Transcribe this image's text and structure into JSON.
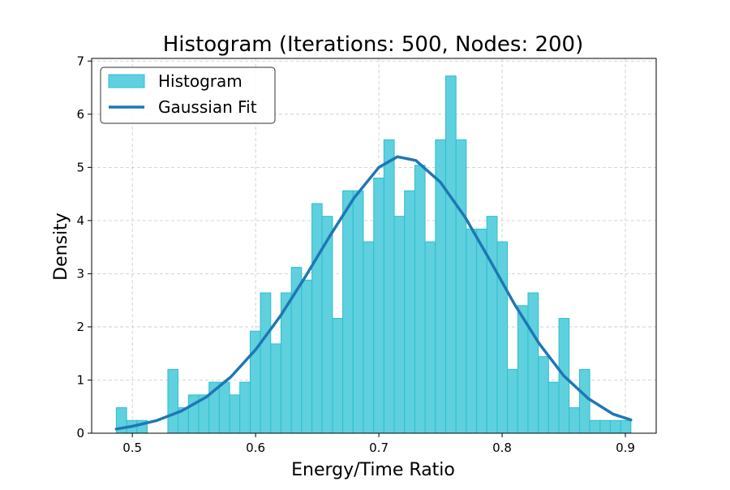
{
  "chart_data": {
    "type": "bar",
    "title": "Histogram (Iterations: 500, Nodes: 200)",
    "xlabel": "Energy/Time Ratio",
    "ylabel": "Density",
    "xlim": [
      0.467,
      0.925
    ],
    "ylim": [
      0,
      7.05
    ],
    "xticks": [
      "0.5",
      "0.6",
      "0.7",
      "0.8",
      "0.9"
    ],
    "yticks": [
      "0",
      "1",
      "2",
      "3",
      "4",
      "5",
      "6",
      "7"
    ],
    "grid": true,
    "legend_position": "top-left",
    "bin_edges": [
      0.487,
      0.4954,
      0.5037,
      0.5121,
      0.5204,
      0.5288,
      0.5371,
      0.5455,
      0.5538,
      0.5622,
      0.5705,
      0.5789,
      0.5872,
      0.5956,
      0.6039,
      0.6123,
      0.6206,
      0.629,
      0.6373,
      0.6457,
      0.654,
      0.6624,
      0.6707,
      0.6791,
      0.6874,
      0.6958,
      0.7041,
      0.7125,
      0.7208,
      0.7292,
      0.7375,
      0.7459,
      0.7542,
      0.7626,
      0.7709,
      0.7793,
      0.7876,
      0.796,
      0.8043,
      0.8127,
      0.821,
      0.8294,
      0.8377,
      0.8461,
      0.8544,
      0.8628,
      0.8711,
      0.8795,
      0.8878,
      0.8962,
      0.9045
    ],
    "series": [
      {
        "name": "Histogram",
        "kind": "histogram",
        "color": "#5ed0de",
        "edge_color": "#2fbfcf",
        "values": [
          0.48,
          0.24,
          0.24,
          0.0,
          0.0,
          1.2,
          0.48,
          0.72,
          0.72,
          0.96,
          0.96,
          0.72,
          0.96,
          1.92,
          2.64,
          1.68,
          2.64,
          3.12,
          2.88,
          4.32,
          4.08,
          2.16,
          4.56,
          4.56,
          3.6,
          4.8,
          5.52,
          4.08,
          4.56,
          5.04,
          3.6,
          5.52,
          6.72,
          5.52,
          3.84,
          3.84,
          4.08,
          3.6,
          1.2,
          2.4,
          2.64,
          1.44,
          0.96,
          2.16,
          0.48,
          1.2,
          0.24,
          0.24,
          0.24,
          0.24
        ]
      },
      {
        "name": "Gaussian Fit",
        "kind": "line",
        "color": "#1f77b4",
        "x": [
          0.487,
          0.5,
          0.52,
          0.54,
          0.56,
          0.58,
          0.6,
          0.62,
          0.64,
          0.66,
          0.68,
          0.7,
          0.715,
          0.73,
          0.75,
          0.77,
          0.79,
          0.81,
          0.83,
          0.85,
          0.87,
          0.89,
          0.9045
        ],
        "y": [
          0.08,
          0.13,
          0.24,
          0.42,
          0.68,
          1.06,
          1.57,
          2.2,
          2.93,
          3.7,
          4.43,
          5.0,
          5.2,
          5.13,
          4.72,
          4.06,
          3.26,
          2.43,
          1.69,
          1.08,
          0.65,
          0.36,
          0.25
        ]
      }
    ]
  }
}
